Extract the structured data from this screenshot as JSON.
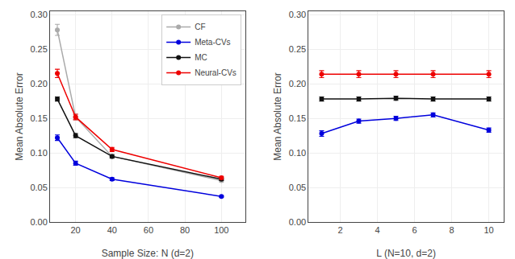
{
  "chart_data": [
    {
      "type": "line",
      "x": [
        10,
        20,
        40,
        100
      ],
      "series": [
        {
          "name": "CF",
          "color": "#aaaaaa",
          "marker": "circle",
          "values": [
            0.278,
            0.152,
            0.095,
            0.06
          ],
          "yerr": [
            0.008,
            0.004,
            0.003,
            0.002
          ]
        },
        {
          "name": "Meta-CVs",
          "color": "#0000dd",
          "marker": "circle",
          "values": [
            0.122,
            0.085,
            0.062,
            0.037
          ],
          "yerr": [
            0.004,
            0.003,
            0.002,
            0.001
          ]
        },
        {
          "name": "MC",
          "color": "#111111",
          "marker": "circle",
          "values": [
            0.178,
            0.125,
            0.095,
            0.062
          ],
          "yerr": [
            0.003,
            0.003,
            0.002,
            0.002
          ]
        },
        {
          "name": "Neural-CVs",
          "color": "#ee0000",
          "marker": "circle",
          "values": [
            0.215,
            0.152,
            0.105,
            0.064
          ],
          "yerr": [
            0.006,
            0.004,
            0.003,
            0.002
          ]
        }
      ],
      "x_label": "Sample Size: N (d=2)",
      "y_label": "Mean Absolute Error",
      "xlim": [
        6,
        113
      ],
      "xticks": [
        20,
        40,
        60,
        80,
        100
      ],
      "ylim": [
        0.0,
        0.305
      ],
      "yticks": [
        {
          "value": 0.0,
          "label": "0.00"
        },
        {
          "value": 0.05,
          "label": "0.05"
        },
        {
          "value": 0.1,
          "label": "0.10"
        },
        {
          "value": 0.15,
          "label": "0.15"
        },
        {
          "value": 0.2,
          "label": "0.20"
        },
        {
          "value": 0.25,
          "label": "0.25"
        },
        {
          "value": 0.3,
          "label": "0.30"
        }
      ],
      "grid": true,
      "legend": "upper right"
    },
    {
      "type": "line",
      "x": [
        1,
        3,
        5,
        7,
        10
      ],
      "series": [
        {
          "name": "Meta-CVs",
          "color": "#0000dd",
          "marker": "circle",
          "values": [
            0.128,
            0.146,
            0.15,
            0.155,
            0.133
          ],
          "yerr": [
            0.004,
            0.003,
            0.003,
            0.003,
            0.003
          ]
        },
        {
          "name": "MC",
          "color": "#111111",
          "marker": "circle",
          "values": [
            0.178,
            0.178,
            0.179,
            0.178,
            0.178
          ],
          "yerr": [
            0.003,
            0.003,
            0.003,
            0.003,
            0.003
          ]
        },
        {
          "name": "Neural-CVs",
          "color": "#ee0000",
          "marker": "circle",
          "values": [
            0.214,
            0.214,
            0.214,
            0.214,
            0.214
          ],
          "yerr": [
            0.005,
            0.005,
            0.005,
            0.005,
            0.005
          ]
        }
      ],
      "x_label": "L (N=10, d=2)",
      "y_label": "Mean Absolute Error",
      "xlim": [
        0.3,
        10.8
      ],
      "xticks": [
        2,
        4,
        6,
        8,
        10
      ],
      "ylim": [
        0.0,
        0.305
      ],
      "yticks": [
        {
          "value": 0.0,
          "label": "0.00"
        },
        {
          "value": 0.05,
          "label": "0.05"
        },
        {
          "value": 0.1,
          "label": "0.10"
        },
        {
          "value": 0.15,
          "label": "0.15"
        },
        {
          "value": 0.2,
          "label": "0.20"
        },
        {
          "value": 0.25,
          "label": "0.25"
        },
        {
          "value": 0.3,
          "label": "0.30"
        }
      ],
      "grid": true
    }
  ]
}
